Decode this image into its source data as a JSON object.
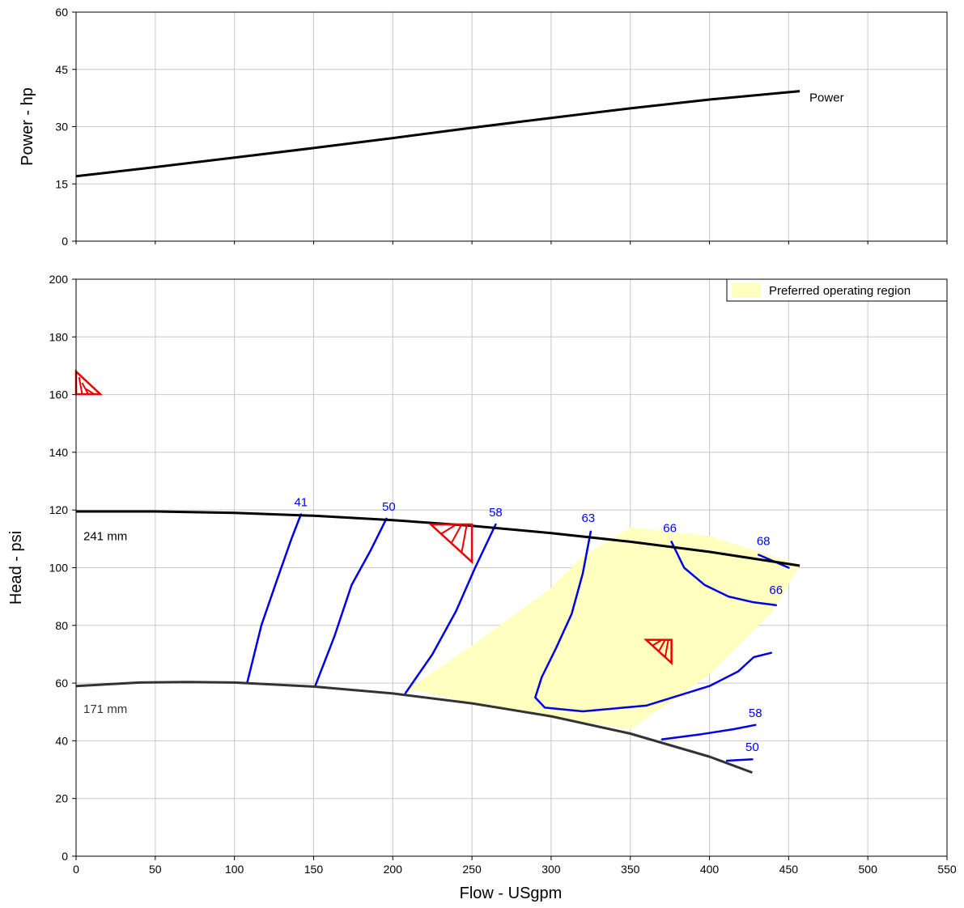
{
  "colors": {
    "grid": "#c8c8c8",
    "curve": "#000000",
    "curve_low": "#333333",
    "efficiency": "#0000e6",
    "region": "#ffffc0",
    "marker": "#ee0000"
  },
  "chart_data": [
    {
      "type": "line",
      "ylabel": "Power - hp",
      "xlim": [
        0,
        550
      ],
      "ylim": [
        0,
        60
      ],
      "xticks": [
        0,
        50,
        100,
        150,
        200,
        250,
        300,
        350,
        400,
        450,
        500,
        550
      ],
      "yticks": [
        0,
        15,
        30,
        45,
        60
      ],
      "series": [
        {
          "name": "Power",
          "x": [
            0,
            50,
            100,
            150,
            200,
            250,
            300,
            350,
            400,
            457
          ],
          "y": [
            17,
            19.4,
            21.9,
            24.4,
            27.0,
            29.7,
            32.3,
            34.8,
            37.1,
            39.3
          ]
        }
      ]
    },
    {
      "type": "line",
      "xlabel": "Flow - USgpm",
      "ylabel": "Head - psi",
      "xlim": [
        0,
        550
      ],
      "ylim": [
        0,
        200
      ],
      "xticks": [
        0,
        50,
        100,
        150,
        200,
        250,
        300,
        350,
        400,
        450,
        500,
        550
      ],
      "yticks": [
        0,
        20,
        40,
        60,
        80,
        100,
        120,
        140,
        160,
        180,
        200
      ],
      "legend": {
        "label": "Preferred operating region",
        "position": "top-right"
      },
      "impeller_curves": [
        {
          "name": "241 mm",
          "x": [
            0,
            50,
            100,
            150,
            200,
            250,
            300,
            350,
            400,
            457
          ],
          "y": [
            119.5,
            119.5,
            119,
            118,
            116.5,
            114.5,
            112,
            109,
            105.5,
            100.7
          ]
        },
        {
          "name": "171 mm",
          "x": [
            0,
            40,
            70,
            100,
            150,
            200,
            250,
            300,
            350,
            400,
            427
          ],
          "y": [
            59,
            60.2,
            60.4,
            60.2,
            58.8,
            56.4,
            53,
            48.5,
            42.5,
            34.5,
            29
          ]
        }
      ],
      "preferred_region": {
        "x": [
          210,
          250,
          300,
          320,
          350,
          400,
          457,
          440,
          400,
          350,
          300,
          250
        ],
        "y": [
          58,
          73,
          93,
          104,
          114,
          111,
          101,
          85,
          63,
          44,
          48,
          53
        ]
      },
      "efficiency_curves": [
        {
          "label": "41",
          "x": [
            108,
            117,
            127,
            136,
            142
          ],
          "y": [
            60,
            80,
            96,
            110,
            118.5
          ]
        },
        {
          "label": "50",
          "x": [
            151,
            163,
            174,
            186,
            196
          ],
          "y": [
            59,
            76,
            94,
            106,
            117
          ]
        },
        {
          "label": "58",
          "x": [
            208,
            225,
            240,
            252,
            265
          ],
          "y": [
            56.5,
            70,
            85,
            100,
            115
          ]
        },
        {
          "label": "63",
          "x": [
            325,
            320,
            313,
            303,
            294,
            290,
            296,
            320,
            360,
            400,
            418,
            428,
            439
          ],
          "y": [
            112.5,
            98,
            84,
            72,
            62,
            55,
            51.5,
            50.2,
            52.2,
            59,
            64,
            69,
            70.5
          ]
        },
        {
          "label": "66",
          "x": [
            376,
            384,
            397,
            412,
            428,
            442
          ],
          "y": [
            109,
            100,
            94,
            90,
            88,
            87
          ]
        },
        {
          "label": "68",
          "x": [
            431,
            450
          ],
          "y": [
            104.5,
            100
          ]
        },
        {
          "label": "58",
          "x": [
            370,
            395,
            415,
            429
          ],
          "y": [
            40.5,
            42.3,
            44,
            45.5
          ]
        },
        {
          "label": "50",
          "x": [
            411,
            427
          ],
          "y": [
            33.1,
            33.6
          ]
        }
      ]
    }
  ],
  "labels": {
    "power_curve": "Power",
    "impeller_241": "241 mm",
    "impeller_171": "171 mm",
    "legend": "Preferred operating region",
    "x_axis": "Flow - USgpm",
    "y_axis_top": "Power - hp",
    "y_axis_bottom": "Head - psi"
  }
}
